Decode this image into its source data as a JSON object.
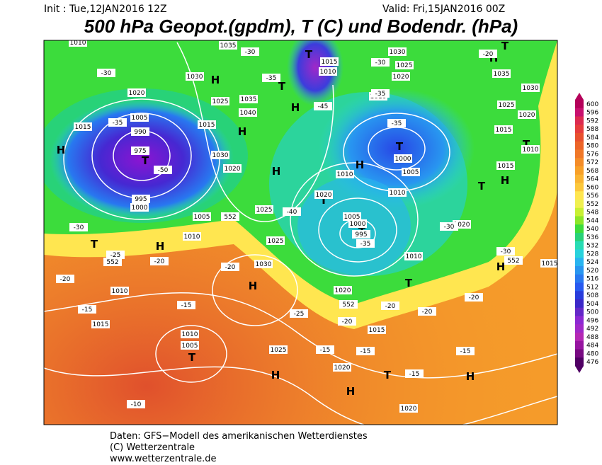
{
  "header": {
    "init": "Init : Tue,12JAN2016 12Z",
    "valid": "Valid: Fri,15JAN2016 00Z",
    "title": "500 hPa Geopot.(gpdm), T (C) und Bodendr. (hPa)"
  },
  "scale": {
    "labels": [
      "600",
      "596",
      "592",
      "588",
      "584",
      "580",
      "576",
      "572",
      "568",
      "564",
      "560",
      "556",
      "552",
      "548",
      "544",
      "540",
      "536",
      "532",
      "528",
      "524",
      "520",
      "516",
      "512",
      "508",
      "504",
      "500",
      "496",
      "492",
      "488",
      "484",
      "480",
      "476"
    ],
    "colors": [
      "#b4005a",
      "#c8106e",
      "#dc2a50",
      "#e63c3c",
      "#e8502e",
      "#ec6428",
      "#f07828",
      "#f48c28",
      "#f8a028",
      "#fab432",
      "#fcc83c",
      "#ffe650",
      "#f0f050",
      "#c8f032",
      "#8ce628",
      "#3cdc3c",
      "#28d278",
      "#28dcb4",
      "#28d2dc",
      "#28b4f0",
      "#2896f0",
      "#2878f0",
      "#285af0",
      "#283cdc",
      "#3c28c8",
      "#6428c8",
      "#8c28d2",
      "#a028c8",
      "#b428b4",
      "#9614a0",
      "#780a82",
      "#500064"
    ]
  },
  "map": {
    "centers": [
      "H",
      "H",
      "H",
      "H",
      "T",
      "T",
      "T",
      "T",
      "T",
      "H",
      "H",
      "T",
      "H",
      "H",
      "T",
      "H",
      "H",
      "T",
      "H",
      "T",
      "H",
      "T",
      "T",
      "T",
      "H",
      "T",
      "H"
    ],
    "labels": [
      "1010",
      "1020",
      "1015",
      "1005",
      "990",
      "975",
      "995",
      "1000",
      "1030",
      "1025",
      "1035",
      "1040",
      "1015",
      "1030",
      "1020",
      "1025",
      "1005",
      "1010",
      "1025",
      "1030",
      "1010",
      "1015",
      "1010",
      "1005",
      "1025",
      "1020",
      "1015",
      "1020",
      "1010",
      "1020",
      "1005",
      "1000",
      "995",
      "1010",
      "1010",
      "1005",
      "1000",
      "1010",
      "1020",
      "1025",
      "1030",
      "1015",
      "1010",
      "1035",
      "1025",
      "1020",
      "1015",
      "1035",
      "1030",
      "1010",
      "1015",
      "1020",
      "1015",
      "1020",
      "-30",
      "-35",
      "-50",
      "-30",
      "-25",
      "-20",
      "-20",
      "-15",
      "-15",
      "-20",
      "-25",
      "-20",
      "-15",
      "-15",
      "-15",
      "-15",
      "-10",
      "-35",
      "-30",
      "-35",
      "-35",
      "-40",
      "-35",
      "-30",
      "-30",
      "-20",
      "-20",
      "-20",
      "-30",
      "-20",
      "-45",
      "552",
      "552",
      "552",
      "552"
    ]
  },
  "footer": {
    "lines": [
      "Daten: GFS−Modell des amerikanischen Wetterdienstes",
      "(C) Wetterzentrale",
      "www.wetterzentrale.de"
    ]
  }
}
